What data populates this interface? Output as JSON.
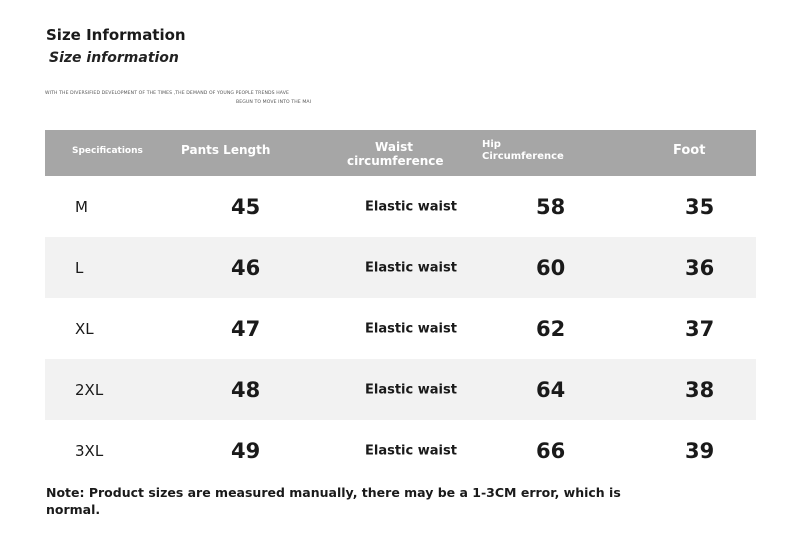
{
  "header": {
    "title": "Size Information",
    "subtitle": "Size information",
    "fine_print_1": "WITH THE DIVERSIFIED DEVELOPMENT OF THE TIMES ,THE DEMAND OF YOUNG PEOPLE TRENDS HAVE",
    "fine_print_2": "BEGUN TO MOVE INTO THE MAI"
  },
  "table": {
    "columns": [
      "Specifications",
      "Pants Length",
      "Waist circumference",
      "Hip Circumference",
      "Foot"
    ],
    "rows": [
      {
        "size": "M",
        "length": "45",
        "waist": "Elastic waist",
        "hip": "58",
        "foot": "35"
      },
      {
        "size": "L",
        "length": "46",
        "waist": "Elastic waist",
        "hip": "60",
        "foot": "36"
      },
      {
        "size": "XL",
        "length": "47",
        "waist": "Elastic waist",
        "hip": "62",
        "foot": "37"
      },
      {
        "size": "2XL",
        "length": "48",
        "waist": "Elastic waist",
        "hip": "64",
        "foot": "38"
      },
      {
        "size": "3XL",
        "length": "49",
        "waist": "Elastic waist",
        "hip": "66",
        "foot": "39"
      }
    ]
  },
  "note": "Note: Product sizes are measured manually, there may be a 1-3CM error, which is normal.",
  "colors": {
    "header_bg": "#a6a6a6",
    "row_shade": "#f2f2f2",
    "text": "#1a1a1a"
  }
}
